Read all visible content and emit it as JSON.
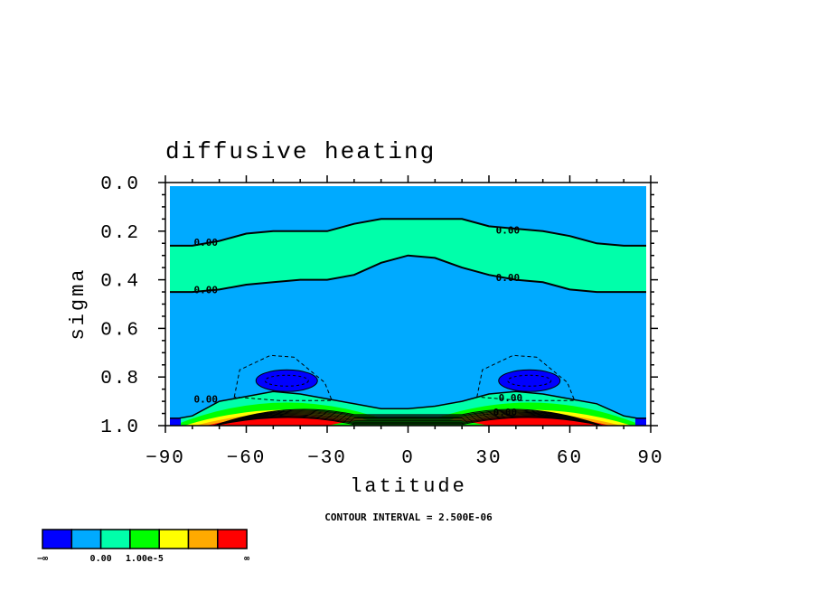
{
  "chart_data": {
    "type": "contour",
    "title": "diffusive heating",
    "xlabel": "latitude",
    "ylabel": "sigma",
    "xlim": [
      -90,
      90
    ],
    "ylim": [
      1.0,
      0.0
    ],
    "y_inverted": true,
    "x_ticks": [
      "−90",
      "−60",
      "−30",
      "0",
      "30",
      "60",
      "90"
    ],
    "x_tick_values": [
      -90,
      -60,
      -30,
      0,
      30,
      60,
      90
    ],
    "y_ticks": [
      "0.0",
      "0.2",
      "0.4",
      "0.6",
      "0.8",
      "1.0"
    ],
    "y_tick_values": [
      0.0,
      0.2,
      0.4,
      0.6,
      0.8,
      1.0
    ],
    "contour_interval_note": "CONTOUR INTERVAL = 2.500E-06",
    "contour_labels": [
      "0.00",
      "0.00",
      "0.00",
      "0.00",
      "0.00",
      "0.00",
      "0.00"
    ],
    "colorbar": {
      "colors": [
        "#0000ff",
        "#00aaff",
        "#00ffaa",
        "#00ff00",
        "#ffff00",
        "#ffaa00",
        "#ff0000"
      ],
      "labels": [
        "−∞",
        "0.00",
        "1.00e-5",
        "∞"
      ]
    },
    "upper_zero_line": {
      "lat": [
        -90,
        -80,
        -70,
        -60,
        -50,
        -40,
        -30,
        -20,
        -10,
        0,
        10,
        20,
        30,
        40,
        50,
        60,
        70,
        80,
        90
      ],
      "sigma": [
        0.26,
        0.26,
        0.24,
        0.21,
        0.2,
        0.2,
        0.2,
        0.17,
        0.15,
        0.15,
        0.15,
        0.15,
        0.18,
        0.19,
        0.2,
        0.22,
        0.25,
        0.26,
        0.26
      ]
    },
    "lower_zero_line": {
      "lat": [
        -90,
        -80,
        -70,
        -60,
        -50,
        -40,
        -30,
        -20,
        -10,
        0,
        10,
        20,
        30,
        40,
        50,
        60,
        70,
        80,
        90
      ],
      "sigma": [
        0.45,
        0.45,
        0.44,
        0.42,
        0.41,
        0.4,
        0.4,
        0.38,
        0.33,
        0.3,
        0.31,
        0.35,
        0.38,
        0.4,
        0.41,
        0.44,
        0.45,
        0.45,
        0.45
      ]
    },
    "surface_zero_line": {
      "lat": [
        -90,
        -85,
        -80,
        -70,
        -60,
        -50,
        -40,
        -30,
        -20,
        -10,
        0,
        10,
        20,
        30,
        40,
        50,
        60,
        70,
        80,
        85,
        90
      ],
      "sigma": [
        0.97,
        0.97,
        0.96,
        0.9,
        0.88,
        0.86,
        0.87,
        0.89,
        0.91,
        0.93,
        0.93,
        0.92,
        0.9,
        0.87,
        0.86,
        0.87,
        0.89,
        0.91,
        0.96,
        0.97,
        0.97
      ]
    },
    "negative_cells": [
      {
        "lat_center": -45,
        "sigma_center": 0.83
      },
      {
        "lat_center": 45,
        "sigma_center": 0.83
      }
    ]
  }
}
